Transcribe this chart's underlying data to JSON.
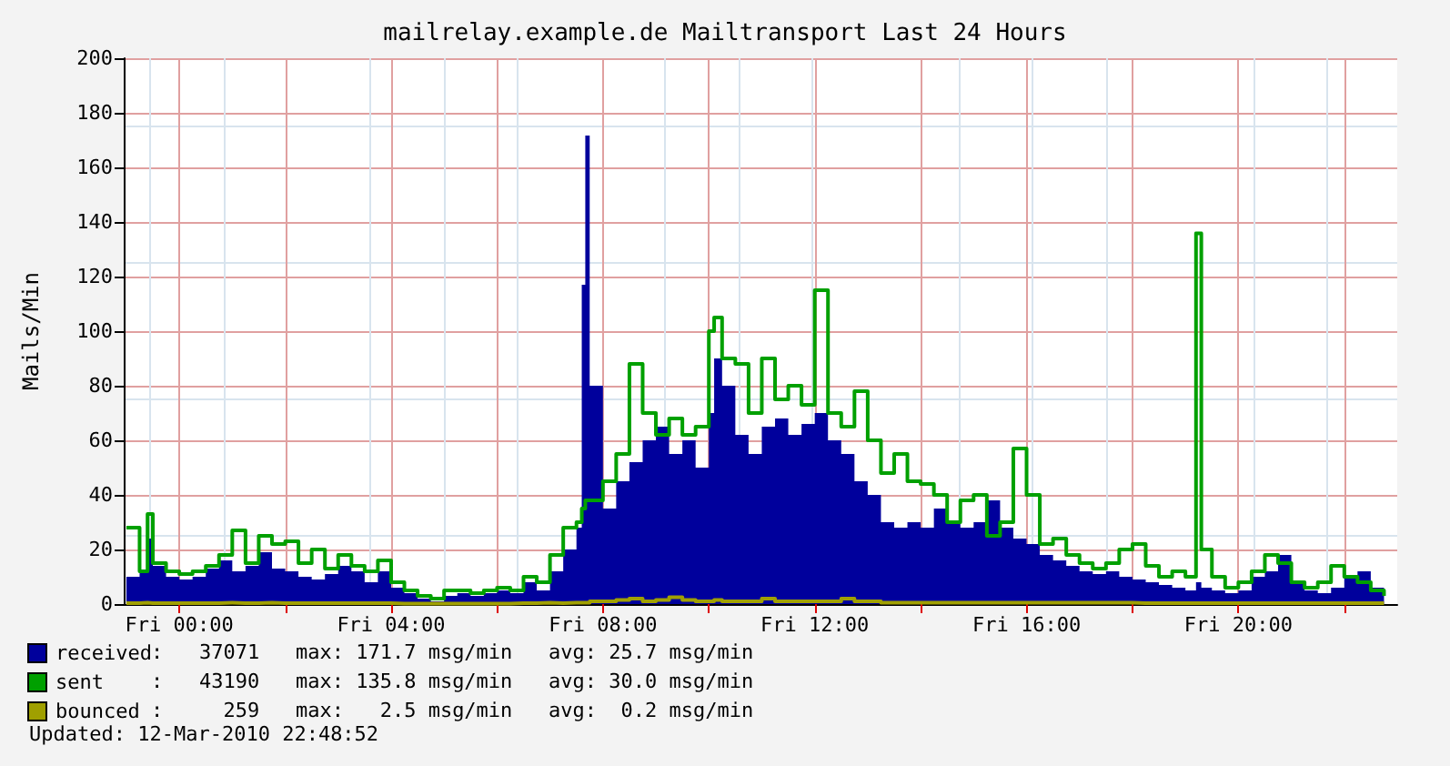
{
  "chart_data": {
    "type": "area",
    "title": "mailrelay.example.de Mailtransport Last 24 Hours",
    "ylabel": "Mails/Min",
    "x": [
      "2010-03-11T23:00",
      "2010-03-11T23:15",
      "2010-03-11T23:24",
      "2010-03-11T23:30",
      "2010-03-11T23:45",
      "2010-03-12T00:00",
      "2010-03-12T00:15",
      "2010-03-12T00:30",
      "2010-03-12T00:45",
      "2010-03-12T01:00",
      "2010-03-12T01:15",
      "2010-03-12T01:30",
      "2010-03-12T01:45",
      "2010-03-12T02:00",
      "2010-03-12T02:15",
      "2010-03-12T02:30",
      "2010-03-12T02:45",
      "2010-03-12T03:00",
      "2010-03-12T03:15",
      "2010-03-12T03:30",
      "2010-03-12T03:45",
      "2010-03-12T04:00",
      "2010-03-12T04:15",
      "2010-03-12T04:30",
      "2010-03-12T04:45",
      "2010-03-12T05:00",
      "2010-03-12T05:15",
      "2010-03-12T05:30",
      "2010-03-12T05:45",
      "2010-03-12T06:00",
      "2010-03-12T06:15",
      "2010-03-12T06:30",
      "2010-03-12T06:45",
      "2010-03-12T07:00",
      "2010-03-12T07:15",
      "2010-03-12T07:30",
      "2010-03-12T07:36",
      "2010-03-12T07:40",
      "2010-03-12T07:45",
      "2010-03-12T08:00",
      "2010-03-12T08:15",
      "2010-03-12T08:30",
      "2010-03-12T08:45",
      "2010-03-12T09:00",
      "2010-03-12T09:15",
      "2010-03-12T09:30",
      "2010-03-12T09:45",
      "2010-03-12T10:00",
      "2010-03-12T10:06",
      "2010-03-12T10:15",
      "2010-03-12T10:30",
      "2010-03-12T10:45",
      "2010-03-12T11:00",
      "2010-03-12T11:15",
      "2010-03-12T11:30",
      "2010-03-12T11:45",
      "2010-03-12T12:00",
      "2010-03-12T12:15",
      "2010-03-12T12:30",
      "2010-03-12T12:45",
      "2010-03-12T13:00",
      "2010-03-12T13:15",
      "2010-03-12T13:30",
      "2010-03-12T13:45",
      "2010-03-12T14:00",
      "2010-03-12T14:15",
      "2010-03-12T14:30",
      "2010-03-12T14:45",
      "2010-03-12T15:00",
      "2010-03-12T15:15",
      "2010-03-12T15:30",
      "2010-03-12T15:45",
      "2010-03-12T16:00",
      "2010-03-12T16:15",
      "2010-03-12T16:30",
      "2010-03-12T16:45",
      "2010-03-12T17:00",
      "2010-03-12T17:15",
      "2010-03-12T17:30",
      "2010-03-12T17:45",
      "2010-03-12T18:00",
      "2010-03-12T18:15",
      "2010-03-12T18:30",
      "2010-03-12T18:45",
      "2010-03-12T19:00",
      "2010-03-12T19:12",
      "2010-03-12T19:18",
      "2010-03-12T19:30",
      "2010-03-12T19:45",
      "2010-03-12T20:00",
      "2010-03-12T20:15",
      "2010-03-12T20:30",
      "2010-03-12T20:45",
      "2010-03-12T21:00",
      "2010-03-12T21:15",
      "2010-03-12T21:30",
      "2010-03-12T21:45",
      "2010-03-12T22:00",
      "2010-03-12T22:15",
      "2010-03-12T22:30",
      "2010-03-12T22:45"
    ],
    "series": [
      {
        "name": "received",
        "color": "#00009c",
        "values": [
          10,
          12,
          24,
          14,
          10,
          9,
          10,
          13,
          16,
          12,
          14,
          19,
          13,
          12,
          10,
          9,
          11,
          14,
          12,
          8,
          12,
          6,
          4,
          2,
          1,
          3,
          4,
          3,
          4,
          5,
          4,
          8,
          5,
          12,
          20,
          28,
          117,
          171.7,
          80,
          35,
          45,
          52,
          60,
          65,
          55,
          60,
          50,
          70,
          90,
          80,
          62,
          55,
          65,
          68,
          62,
          66,
          70,
          60,
          55,
          45,
          40,
          30,
          28,
          30,
          28,
          35,
          30,
          28,
          30,
          38,
          28,
          24,
          22,
          18,
          16,
          14,
          12,
          11,
          12,
          10,
          9,
          8,
          7,
          6,
          5,
          8,
          6,
          5,
          4,
          5,
          10,
          12,
          18,
          8,
          5,
          4,
          6,
          10,
          12,
          6,
          4
        ]
      },
      {
        "name": "sent",
        "type": "step",
        "color": "#00a000",
        "values": [
          28,
          12,
          33,
          15,
          12,
          11,
          12,
          14,
          18,
          27,
          15,
          25,
          22,
          23,
          15,
          20,
          13,
          18,
          14,
          12,
          16,
          8,
          5,
          3,
          2,
          5,
          5,
          4,
          5,
          6,
          5,
          10,
          8,
          18,
          28,
          30,
          35,
          38,
          38,
          45,
          55,
          88,
          70,
          62,
          68,
          62,
          65,
          100,
          105,
          90,
          88,
          70,
          90,
          75,
          80,
          73,
          115,
          70,
          65,
          78,
          60,
          48,
          55,
          45,
          44,
          40,
          30,
          38,
          40,
          25,
          30,
          57,
          40,
          22,
          24,
          18,
          15,
          13,
          15,
          20,
          22,
          14,
          10,
          12,
          10,
          135.8,
          20,
          10,
          6,
          8,
          12,
          18,
          15,
          8,
          6,
          8,
          14,
          10,
          8,
          5,
          3
        ]
      },
      {
        "name": "bounced",
        "type": "step",
        "color": "#a0a000",
        "values": [
          0.3,
          0.5,
          0.3,
          0.3,
          0.3,
          0.3,
          0.3,
          0.3,
          0.5,
          0.3,
          0.3,
          0.5,
          0.3,
          0.3,
          0.3,
          0.3,
          0.3,
          0.3,
          0.3,
          0.3,
          0.3,
          0.2,
          0.2,
          0.2,
          0.2,
          0.2,
          0.2,
          0.2,
          0.2,
          0.2,
          0.3,
          0.3,
          0.5,
          0.3,
          0.5,
          0.5,
          0.5,
          0.5,
          1,
          1,
          1.5,
          2,
          1,
          1.5,
          2.5,
          1.5,
          1,
          1,
          1.5,
          1,
          1,
          1,
          2,
          1,
          1,
          1,
          1,
          1,
          2,
          1,
          1,
          0.5,
          0.5,
          0.5,
          0.5,
          0.5,
          0.5,
          0.5,
          0.5,
          0.5,
          0.5,
          0.5,
          0.5,
          0.5,
          0.5,
          0.5,
          0.5,
          0.5,
          0.5,
          0.5,
          0.3,
          0.3,
          0.3,
          0.3,
          0.3,
          0.3,
          0.3,
          0.3,
          0.3,
          0.3,
          0.3,
          0.3,
          0.3,
          0.3,
          0.3,
          0.3,
          0.3,
          0.3,
          0.3,
          0.3,
          0.3
        ]
      }
    ],
    "xlim": [
      "2010-03-11T22:57",
      "2010-03-12T23:00"
    ],
    "xticks": [
      {
        "value": "2010-03-12T00:00",
        "label": "Fri 00:00"
      },
      {
        "value": "2010-03-12T02:00",
        "label": null
      },
      {
        "value": "2010-03-12T04:00",
        "label": "Fri 04:00"
      },
      {
        "value": "2010-03-12T06:00",
        "label": null
      },
      {
        "value": "2010-03-12T08:00",
        "label": "Fri 08:00"
      },
      {
        "value": "2010-03-12T10:00",
        "label": null
      },
      {
        "value": "2010-03-12T12:00",
        "label": "Fri 12:00"
      },
      {
        "value": "2010-03-12T14:00",
        "label": null
      },
      {
        "value": "2010-03-12T16:00",
        "label": "Fri 16:00"
      },
      {
        "value": "2010-03-12T18:00",
        "label": null
      },
      {
        "value": "2010-03-12T20:00",
        "label": "Fri 20:00"
      },
      {
        "value": "2010-03-12T22:00",
        "label": null
      }
    ],
    "ylim": [
      0,
      200
    ],
    "yticks": [
      0,
      20,
      40,
      60,
      80,
      100,
      120,
      140,
      160,
      180,
      200
    ],
    "grid": true,
    "legend": "bottom left",
    "annotations": [
      ":   37071   max: 171.7 msg/min   avg: 25.7 msg/min",
      ":   43190   max: 135.8 msg/min   avg: 30.0 msg/min",
      ":     259   max:   2.5 msg/min   avg:  0.2 msg/min",
      "Updated: 12-Mar-2010 22:48:52"
    ]
  }
}
